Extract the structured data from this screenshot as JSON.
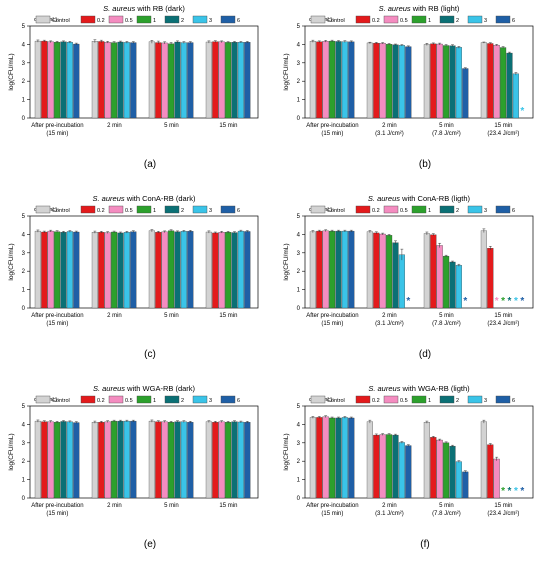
{
  "figure": {
    "legend_title": "c (ng/mL):",
    "legend_labels": [
      "Control",
      "0.2",
      "0.5",
      "1",
      "2",
      "3",
      "6"
    ],
    "ylabel": "log(CFU/mL)",
    "colors": [
      "#d3d3d3",
      "#e31a1c",
      "#f48cc0",
      "#2ca02c",
      "#0b7075",
      "#3ac4e8",
      "#1f5fa6"
    ],
    "star_color_cyan": "#3ac4e8",
    "star_color_pink": "#f48cc0",
    "star_color_green": "#2ca02c",
    "star_color_teal": "#0b7075",
    "star_color_blue": "#1f5fa6"
  },
  "chart_data": [
    {
      "type": "bar",
      "panel": "(a)",
      "title_italic": "S. aureus",
      "title_rest": " with RB (dark)",
      "ylim": [
        0,
        5
      ],
      "yticks": [
        "0",
        "1",
        "2",
        "3",
        "4",
        "5"
      ],
      "categories": [
        [
          "After pre-incubation",
          "(15 min)"
        ],
        [
          "2 min"
        ],
        [
          "5 min"
        ],
        [
          "15 min"
        ]
      ],
      "series": [
        {
          "name": "Control",
          "values": [
            4.18,
            4.17,
            4.14,
            4.13
          ],
          "errors": [
            0.06,
            0.08,
            0.08,
            0.06
          ]
        },
        {
          "name": "0.2",
          "values": [
            4.18,
            4.16,
            4.1,
            4.15
          ],
          "errors": [
            0.05,
            0.07,
            0.08,
            0.05
          ]
        },
        {
          "name": "0.5",
          "values": [
            4.14,
            4.12,
            4.08,
            4.14
          ],
          "errors": [
            0.05,
            0.05,
            0.06,
            0.05
          ]
        },
        {
          "name": "1",
          "values": [
            4.12,
            4.1,
            4.04,
            4.11
          ],
          "errors": [
            0.05,
            0.05,
            0.06,
            0.04
          ]
        },
        {
          "name": "2",
          "values": [
            4.14,
            4.13,
            4.13,
            4.12
          ],
          "errors": [
            0.05,
            0.05,
            0.06,
            0.04
          ]
        },
        {
          "name": "3",
          "values": [
            4.12,
            4.11,
            4.1,
            4.12
          ],
          "errors": [
            0.05,
            0.05,
            0.05,
            0.04
          ]
        },
        {
          "name": "6",
          "values": [
            4.02,
            4.1,
            4.1,
            4.12
          ],
          "errors": [
            0.05,
            0.05,
            0.05,
            0.04
          ]
        }
      ],
      "stars": []
    },
    {
      "type": "bar",
      "panel": "(b)",
      "title_italic": "S. aureus",
      "title_rest": " with RB (light)",
      "ylim": [
        0,
        5
      ],
      "yticks": [
        "0",
        "1",
        "2",
        "3",
        "4",
        "5"
      ],
      "categories": [
        [
          "After pre-incubation",
          "(15 min)"
        ],
        [
          "2 min",
          "(3.1 J/cm²)"
        ],
        [
          "5 min",
          "(7.8 J/cm²)"
        ],
        [
          "15 min",
          "(23.4 J/cm²)"
        ]
      ],
      "series": [
        {
          "name": "Control",
          "values": [
            4.17,
            4.08,
            4.0,
            4.1
          ],
          "errors": [
            0.06,
            0.04,
            0.06,
            0.03
          ]
        },
        {
          "name": "0.2",
          "values": [
            4.14,
            4.07,
            4.03,
            4.05
          ],
          "errors": [
            0.05,
            0.04,
            0.05,
            0.04
          ]
        },
        {
          "name": "0.5",
          "values": [
            4.17,
            4.06,
            4.02,
            3.96
          ],
          "errors": [
            0.05,
            0.04,
            0.05,
            0.04
          ]
        },
        {
          "name": "1",
          "values": [
            4.18,
            4.01,
            3.94,
            3.83
          ],
          "errors": [
            0.05,
            0.04,
            0.05,
            0.05
          ]
        },
        {
          "name": "2",
          "values": [
            4.16,
            3.98,
            3.93,
            3.53
          ],
          "errors": [
            0.05,
            0.04,
            0.05,
            0.05
          ]
        },
        {
          "name": "3",
          "values": [
            4.15,
            3.95,
            3.84,
            2.4
          ],
          "errors": [
            0.05,
            0.04,
            0.05,
            0.07
          ]
        },
        {
          "name": "6",
          "values": [
            4.14,
            3.88,
            2.69,
            0
          ],
          "errors": [
            0.05,
            0.04,
            0.04,
            0
          ]
        }
      ],
      "stars": [
        {
          "group": 3,
          "bar": 6,
          "color": "#3ac4e8"
        }
      ]
    },
    {
      "type": "bar",
      "panel": "(c)",
      "title_italic": "S. aureus",
      "title_rest": " with ConA-RB (dark)",
      "ylim": [
        0,
        5
      ],
      "yticks": [
        "0",
        "1",
        "2",
        "3",
        "4",
        "5"
      ],
      "categories": [
        [
          "After pre-incubation",
          "(15 min)"
        ],
        [
          "2 min"
        ],
        [
          "5 min"
        ],
        [
          "15 min"
        ]
      ],
      "series": [
        {
          "name": "Control",
          "values": [
            4.18,
            4.12,
            4.2,
            4.13
          ],
          "errors": [
            0.06,
            0.06,
            0.06,
            0.06
          ]
        },
        {
          "name": "0.2",
          "values": [
            4.13,
            4.12,
            4.12,
            4.08
          ],
          "errors": [
            0.05,
            0.05,
            0.05,
            0.05
          ]
        },
        {
          "name": "0.5",
          "values": [
            4.18,
            4.1,
            4.14,
            4.12
          ],
          "errors": [
            0.05,
            0.05,
            0.05,
            0.05
          ]
        },
        {
          "name": "1",
          "values": [
            4.15,
            4.13,
            4.2,
            4.12
          ],
          "errors": [
            0.05,
            0.05,
            0.05,
            0.05
          ]
        },
        {
          "name": "2",
          "values": [
            4.12,
            4.08,
            4.14,
            4.1
          ],
          "errors": [
            0.05,
            0.05,
            0.05,
            0.05
          ]
        },
        {
          "name": "3",
          "values": [
            4.16,
            4.12,
            4.17,
            4.18
          ],
          "errors": [
            0.05,
            0.05,
            0.05,
            0.05
          ]
        },
        {
          "name": "6",
          "values": [
            4.13,
            4.15,
            4.17,
            4.16
          ],
          "errors": [
            0.05,
            0.05,
            0.05,
            0.05
          ]
        }
      ],
      "stars": []
    },
    {
      "type": "bar",
      "panel": "(d)",
      "title_italic": "S. aureus",
      "title_rest": " with ConA-RB (ligth)",
      "ylim": [
        0,
        5
      ],
      "yticks": [
        "0",
        "1",
        "2",
        "3",
        "4",
        "5"
      ],
      "categories": [
        [
          "After pre-incubation",
          "(15 min)"
        ],
        [
          "2 min",
          "(3.1 J/cm²)"
        ],
        [
          "5 min",
          "(7.8 J/cm²)"
        ],
        [
          "15 min",
          "(23.4 J/cm²)"
        ]
      ],
      "series": [
        {
          "name": "Control",
          "values": [
            4.15,
            4.15,
            4.05,
            4.2
          ],
          "errors": [
            0.06,
            0.06,
            0.08,
            0.1
          ]
        },
        {
          "name": "0.2",
          "values": [
            4.18,
            4.08,
            3.98,
            3.25
          ],
          "errors": [
            0.05,
            0.06,
            0.06,
            0.1
          ]
        },
        {
          "name": "0.5",
          "values": [
            4.2,
            4.02,
            3.4,
            0
          ],
          "errors": [
            0.05,
            0.05,
            0.12,
            0
          ]
        },
        {
          "name": "1",
          "values": [
            4.18,
            3.95,
            2.82,
            0
          ],
          "errors": [
            0.05,
            0.05,
            0.05,
            0
          ]
        },
        {
          "name": "2",
          "values": [
            4.18,
            3.55,
            2.5,
            0
          ],
          "errors": [
            0.05,
            0.1,
            0.05,
            0
          ]
        },
        {
          "name": "3",
          "values": [
            4.18,
            2.9,
            2.32,
            0
          ],
          "errors": [
            0.05,
            0.3,
            0.06,
            0
          ]
        },
        {
          "name": "6",
          "values": [
            4.18,
            0,
            0,
            0
          ],
          "errors": [
            0.05,
            0,
            0,
            0
          ]
        }
      ],
      "stars": [
        {
          "group": 1,
          "bar": 6,
          "color": "#1f5fa6"
        },
        {
          "group": 2,
          "bar": 6,
          "color": "#1f5fa6"
        },
        {
          "group": 3,
          "bar": 2,
          "color": "#f48cc0"
        },
        {
          "group": 3,
          "bar": 3,
          "color": "#2ca02c"
        },
        {
          "group": 3,
          "bar": 4,
          "color": "#0b7075"
        },
        {
          "group": 3,
          "bar": 5,
          "color": "#3ac4e8"
        },
        {
          "group": 3,
          "bar": 6,
          "color": "#1f5fa6"
        }
      ]
    },
    {
      "type": "bar",
      "panel": "(e)",
      "title_italic": "S. aureus",
      "title_rest": " with WGA-RB (dark)",
      "ylim": [
        0,
        5
      ],
      "yticks": [
        "0",
        "1",
        "2",
        "3",
        "4",
        "5"
      ],
      "categories": [
        [
          "After pre-incubation",
          "(15 min)"
        ],
        [
          "2 min"
        ],
        [
          "5 min"
        ],
        [
          "15 min"
        ]
      ],
      "series": [
        {
          "name": "Control",
          "values": [
            4.18,
            4.12,
            4.18,
            4.15
          ],
          "errors": [
            0.06,
            0.06,
            0.06,
            0.05
          ]
        },
        {
          "name": "0.2",
          "values": [
            4.15,
            4.12,
            4.15,
            4.12
          ],
          "errors": [
            0.05,
            0.05,
            0.05,
            0.05
          ]
        },
        {
          "name": "0.5",
          "values": [
            4.15,
            4.15,
            4.15,
            4.15
          ],
          "errors": [
            0.05,
            0.05,
            0.05,
            0.05
          ]
        },
        {
          "name": "1",
          "values": [
            4.12,
            4.18,
            4.12,
            4.12
          ],
          "errors": [
            0.05,
            0.05,
            0.05,
            0.05
          ]
        },
        {
          "name": "2",
          "values": [
            4.16,
            4.18,
            4.15,
            4.15
          ],
          "errors": [
            0.05,
            0.05,
            0.05,
            0.05
          ]
        },
        {
          "name": "3",
          "values": [
            4.14,
            4.18,
            4.15,
            4.13
          ],
          "errors": [
            0.05,
            0.05,
            0.05,
            0.05
          ]
        },
        {
          "name": "6",
          "values": [
            4.1,
            4.18,
            4.12,
            4.12
          ],
          "errors": [
            0.05,
            0.05,
            0.05,
            0.05
          ]
        }
      ],
      "stars": []
    },
    {
      "type": "bar",
      "panel": "(f)",
      "title_italic": "S. aureus",
      "title_rest": " with WGA-RB (ligth)",
      "ylim": [
        0,
        5
      ],
      "yticks": [
        "0",
        "1",
        "2",
        "3",
        "4",
        "5"
      ],
      "categories": [
        [
          "After pre-incubation",
          "(15 min)"
        ],
        [
          "2 min",
          "(3.1 J/cm²)"
        ],
        [
          "5 min",
          "(7.8 J/cm²)"
        ],
        [
          "15 min",
          "(23.4 J/cm²)"
        ]
      ],
      "series": [
        {
          "name": "Control",
          "values": [
            4.38,
            4.15,
            4.12,
            4.15
          ],
          "errors": [
            0.05,
            0.08,
            0.06,
            0.08
          ]
        },
        {
          "name": "0.2",
          "values": [
            4.38,
            3.42,
            3.3,
            2.9
          ],
          "errors": [
            0.05,
            0.06,
            0.05,
            0.06
          ]
        },
        {
          "name": "0.5",
          "values": [
            4.42,
            3.45,
            3.15,
            2.12
          ],
          "errors": [
            0.05,
            0.05,
            0.05,
            0.1
          ]
        },
        {
          "name": "1",
          "values": [
            4.35,
            3.45,
            3.0,
            0
          ],
          "errors": [
            0.05,
            0.05,
            0.05,
            0
          ]
        },
        {
          "name": "2",
          "values": [
            4.35,
            3.42,
            2.82,
            0
          ],
          "errors": [
            0.05,
            0.05,
            0.05,
            0
          ]
        },
        {
          "name": "3",
          "values": [
            4.38,
            3.02,
            1.98,
            0
          ],
          "errors": [
            0.05,
            0.05,
            0.05,
            0
          ]
        },
        {
          "name": "6",
          "values": [
            4.35,
            2.85,
            1.42,
            0
          ],
          "errors": [
            0.05,
            0.05,
            0.06,
            0
          ]
        }
      ],
      "stars": [
        {
          "group": 3,
          "bar": 3,
          "color": "#2ca02c"
        },
        {
          "group": 3,
          "bar": 4,
          "color": "#0b7075"
        },
        {
          "group": 3,
          "bar": 5,
          "color": "#3ac4e8"
        },
        {
          "group": 3,
          "bar": 6,
          "color": "#1f5fa6"
        }
      ]
    }
  ]
}
